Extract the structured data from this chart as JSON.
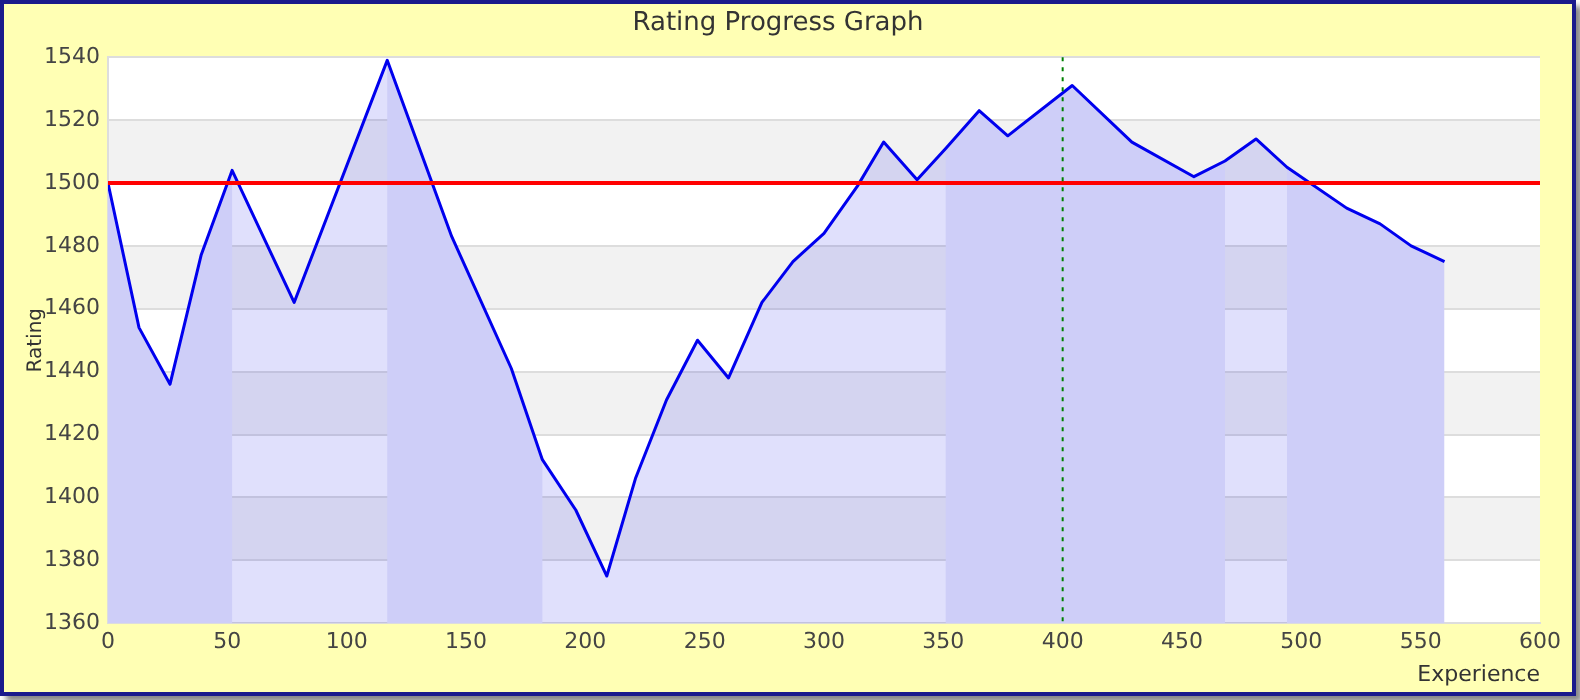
{
  "chart_data": {
    "type": "area",
    "title": "Rating Progress Graph",
    "xlabel": "Experience",
    "ylabel": "Rating",
    "x": [
      0,
      13,
      26,
      39,
      52,
      78,
      117,
      144,
      169,
      182,
      196,
      209,
      221,
      234,
      247,
      260,
      274,
      287,
      300,
      314,
      325,
      339,
      351,
      365,
      377,
      404,
      429,
      455,
      468,
      481,
      494,
      519,
      533,
      546,
      560
    ],
    "series": [
      {
        "color": "#0000ee",
        "values": [
          1500,
          1454,
          1436,
          1477,
          1504,
          1462,
          1539,
          1483,
          1441,
          1412,
          1396,
          1375,
          1406,
          1431,
          1450,
          1438,
          1462,
          1475,
          1484,
          1499,
          1513,
          1501,
          1511,
          1523,
          1515,
          1531,
          1513,
          1502,
          1507,
          1514,
          1505,
          1492,
          1487,
          1480,
          1475
        ]
      }
    ],
    "xlim": [
      0,
      600
    ],
    "xticks": [
      0,
      50,
      100,
      150,
      200,
      250,
      300,
      350,
      400,
      450,
      500,
      550,
      600
    ],
    "ylim": [
      1360,
      1540
    ],
    "yticks": [
      1360,
      1380,
      1400,
      1420,
      1440,
      1460,
      1480,
      1500,
      1520,
      1540
    ],
    "grid": "y",
    "legend": false,
    "marker": "none",
    "line_style": "solid",
    "ref_lines": [
      {
        "axis": "y",
        "value": 1500,
        "color": "#ff0000",
        "line_style": "solid"
      },
      {
        "axis": "x",
        "value": 400,
        "color": "#008000",
        "line_style": "dotted"
      }
    ],
    "bands": [
      {
        "axis": "x",
        "from": 0,
        "to": 52,
        "color": "#ebebfb"
      },
      {
        "axis": "x",
        "from": 117,
        "to": 182,
        "color": "#ebebfb"
      },
      {
        "axis": "x",
        "from": 351,
        "to": 468,
        "color": "#ebebfb"
      },
      {
        "axis": "x",
        "from": 494,
        "to": 560,
        "color": "#ebebfb"
      }
    ]
  }
}
